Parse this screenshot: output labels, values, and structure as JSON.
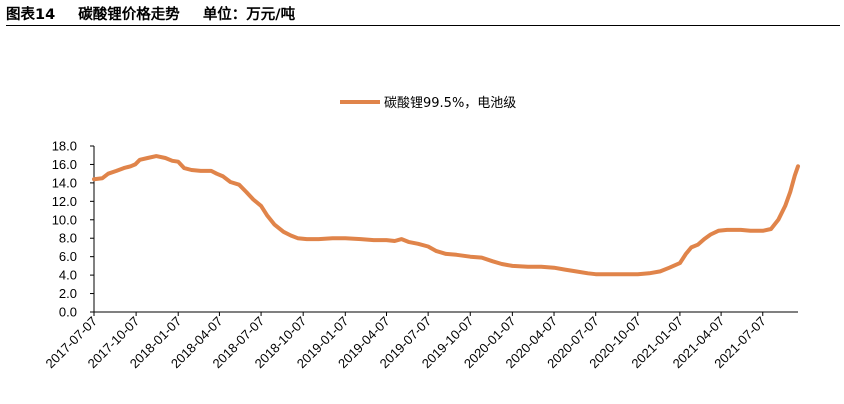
{
  "header": {
    "figure_no": "图表14",
    "title": "碳酸锂价格走势",
    "unit": "单位：万元/吨"
  },
  "chart_data": {
    "type": "line",
    "title": "",
    "xlabel": "",
    "ylabel": "",
    "ylim": [
      0,
      18
    ],
    "yticks": [
      "0.0",
      "2.0",
      "4.0",
      "6.0",
      "8.0",
      "10.0",
      "12.0",
      "14.0",
      "16.0",
      "18.0"
    ],
    "xticks": [
      "2017-07-07",
      "2017-10-07",
      "2018-01-07",
      "2018-04-07",
      "2018-07-07",
      "2018-10-07",
      "2019-01-07",
      "2019-04-07",
      "2019-07-07",
      "2019-10-07",
      "2020-01-07",
      "2020-04-07",
      "2020-07-07",
      "2020-10-07",
      "2021-01-07",
      "2021-04-07",
      "2021-07-07"
    ],
    "xlim": [
      "2017-07-07",
      "2021-09-22"
    ],
    "legend": "top-center",
    "grid": false,
    "series": [
      {
        "name": "碳酸锂99.5%，电池级",
        "color": "#E0844A",
        "points": [
          [
            "2017-07-07",
            14.4
          ],
          [
            "2017-07-25",
            14.5
          ],
          [
            "2017-08-07",
            15.0
          ],
          [
            "2017-08-25",
            15.3
          ],
          [
            "2017-09-10",
            15.6
          ],
          [
            "2017-09-25",
            15.8
          ],
          [
            "2017-10-05",
            16.0
          ],
          [
            "2017-10-15",
            16.5
          ],
          [
            "2017-11-01",
            16.7
          ],
          [
            "2017-11-20",
            16.9
          ],
          [
            "2017-12-10",
            16.7
          ],
          [
            "2017-12-25",
            16.4
          ],
          [
            "2018-01-07",
            16.3
          ],
          [
            "2018-01-20",
            15.6
          ],
          [
            "2018-02-05",
            15.4
          ],
          [
            "2018-02-25",
            15.3
          ],
          [
            "2018-03-20",
            15.3
          ],
          [
            "2018-04-01",
            15.0
          ],
          [
            "2018-04-15",
            14.7
          ],
          [
            "2018-05-01",
            14.1
          ],
          [
            "2018-05-20",
            13.8
          ],
          [
            "2018-06-05",
            13.0
          ],
          [
            "2018-06-20",
            12.2
          ],
          [
            "2018-07-07",
            11.5
          ],
          [
            "2018-07-20",
            10.5
          ],
          [
            "2018-08-05",
            9.5
          ],
          [
            "2018-08-25",
            8.7
          ],
          [
            "2018-09-10",
            8.3
          ],
          [
            "2018-09-25",
            8.0
          ],
          [
            "2018-10-15",
            7.9
          ],
          [
            "2018-11-10",
            7.9
          ],
          [
            "2018-12-10",
            8.0
          ],
          [
            "2019-01-07",
            8.0
          ],
          [
            "2019-02-10",
            7.9
          ],
          [
            "2019-03-10",
            7.8
          ],
          [
            "2019-04-07",
            7.8
          ],
          [
            "2019-04-25",
            7.7
          ],
          [
            "2019-05-10",
            7.9
          ],
          [
            "2019-05-25",
            7.6
          ],
          [
            "2019-06-15",
            7.4
          ],
          [
            "2019-07-07",
            7.1
          ],
          [
            "2019-07-25",
            6.6
          ],
          [
            "2019-08-15",
            6.3
          ],
          [
            "2019-09-07",
            6.2
          ],
          [
            "2019-10-07",
            6.0
          ],
          [
            "2019-11-01",
            5.9
          ],
          [
            "2019-11-25",
            5.5
          ],
          [
            "2019-12-15",
            5.2
          ],
          [
            "2020-01-07",
            5.0
          ],
          [
            "2020-02-10",
            4.9
          ],
          [
            "2020-03-10",
            4.9
          ],
          [
            "2020-04-07",
            4.8
          ],
          [
            "2020-05-01",
            4.6
          ],
          [
            "2020-05-25",
            4.4
          ],
          [
            "2020-06-20",
            4.2
          ],
          [
            "2020-07-07",
            4.1
          ],
          [
            "2020-08-10",
            4.1
          ],
          [
            "2020-09-10",
            4.1
          ],
          [
            "2020-10-07",
            4.1
          ],
          [
            "2020-11-01",
            4.2
          ],
          [
            "2020-11-25",
            4.4
          ],
          [
            "2020-12-15",
            4.8
          ],
          [
            "2021-01-07",
            5.3
          ],
          [
            "2021-01-20",
            6.3
          ],
          [
            "2021-02-01",
            7.0
          ],
          [
            "2021-02-15",
            7.3
          ],
          [
            "2021-03-01",
            7.9
          ],
          [
            "2021-03-15",
            8.4
          ],
          [
            "2021-04-01",
            8.8
          ],
          [
            "2021-04-20",
            8.9
          ],
          [
            "2021-05-20",
            8.9
          ],
          [
            "2021-06-10",
            8.8
          ],
          [
            "2021-07-07",
            8.8
          ],
          [
            "2021-07-25",
            9.0
          ],
          [
            "2021-08-10",
            10.0
          ],
          [
            "2021-08-25",
            11.5
          ],
          [
            "2021-09-05",
            13.0
          ],
          [
            "2021-09-15",
            14.8
          ],
          [
            "2021-09-22",
            15.8
          ]
        ]
      }
    ]
  }
}
